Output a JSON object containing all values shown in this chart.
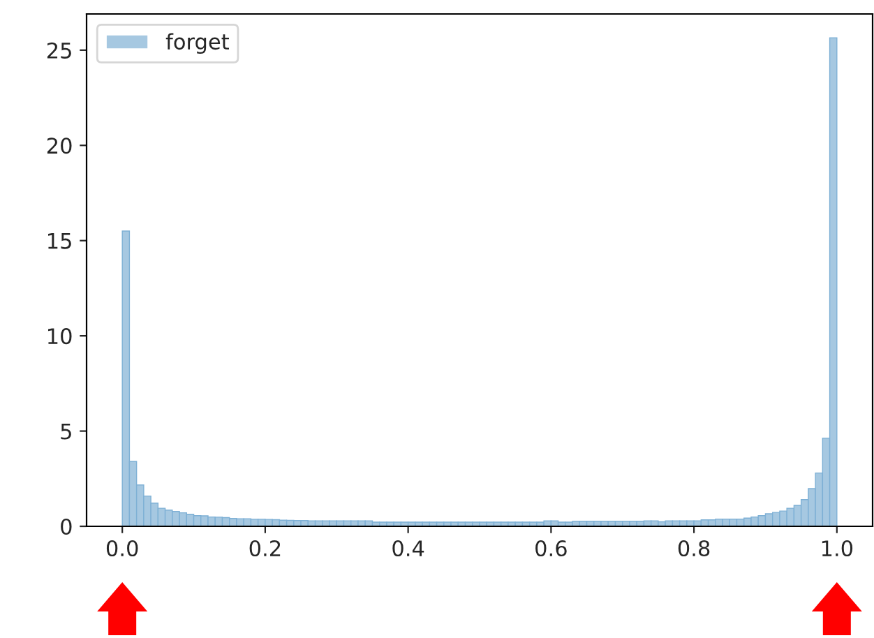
{
  "chart_data": {
    "type": "histogram",
    "bins": [
      0.0,
      0.01,
      0.02,
      0.03,
      0.04,
      0.05,
      0.06,
      0.07,
      0.08,
      0.09,
      0.1,
      0.11,
      0.12,
      0.13,
      0.14,
      0.15,
      0.16,
      0.17,
      0.18,
      0.19,
      0.2,
      0.21,
      0.22,
      0.23,
      0.24,
      0.25,
      0.26,
      0.27,
      0.28,
      0.29,
      0.3,
      0.31,
      0.32,
      0.33,
      0.34,
      0.35,
      0.36,
      0.37,
      0.38,
      0.39,
      0.4,
      0.41,
      0.42,
      0.43,
      0.44,
      0.45,
      0.46,
      0.47,
      0.48,
      0.49,
      0.5,
      0.51,
      0.52,
      0.53,
      0.54,
      0.55,
      0.56,
      0.57,
      0.58,
      0.59,
      0.6,
      0.61,
      0.62,
      0.63,
      0.64,
      0.65,
      0.66,
      0.67,
      0.68,
      0.69,
      0.7,
      0.71,
      0.72,
      0.73,
      0.74,
      0.75,
      0.76,
      0.77,
      0.78,
      0.79,
      0.8,
      0.81,
      0.82,
      0.83,
      0.84,
      0.85,
      0.86,
      0.87,
      0.88,
      0.89,
      0.9,
      0.91,
      0.92,
      0.93,
      0.94,
      0.95,
      0.96,
      0.97,
      0.98,
      0.99,
      1.0
    ],
    "series": [
      {
        "name": "forget",
        "color": "#a6c8e1",
        "values": [
          15.5,
          3.41,
          2.17,
          1.59,
          1.22,
          0.95,
          0.85,
          0.78,
          0.71,
          0.63,
          0.56,
          0.55,
          0.49,
          0.48,
          0.46,
          0.41,
          0.4,
          0.4,
          0.37,
          0.37,
          0.36,
          0.35,
          0.32,
          0.31,
          0.3,
          0.3,
          0.29,
          0.29,
          0.29,
          0.29,
          0.29,
          0.29,
          0.29,
          0.29,
          0.29,
          0.22,
          0.22,
          0.22,
          0.22,
          0.22,
          0.22,
          0.22,
          0.22,
          0.22,
          0.22,
          0.22,
          0.22,
          0.22,
          0.22,
          0.22,
          0.22,
          0.22,
          0.22,
          0.22,
          0.22,
          0.22,
          0.22,
          0.22,
          0.22,
          0.29,
          0.29,
          0.22,
          0.22,
          0.27,
          0.27,
          0.27,
          0.27,
          0.27,
          0.27,
          0.27,
          0.27,
          0.27,
          0.27,
          0.29,
          0.29,
          0.24,
          0.29,
          0.29,
          0.29,
          0.29,
          0.29,
          0.34,
          0.34,
          0.38,
          0.38,
          0.38,
          0.38,
          0.43,
          0.49,
          0.56,
          0.66,
          0.73,
          0.8,
          0.95,
          1.1,
          1.4,
          1.98,
          2.8,
          4.63,
          25.65
        ]
      }
    ],
    "xlim": [
      -0.05,
      1.05
    ],
    "ylim": [
      0,
      26.9
    ],
    "xticks": [
      {
        "value": 0.0,
        "label": "0.0"
      },
      {
        "value": 0.2,
        "label": "0.2"
      },
      {
        "value": 0.4,
        "label": "0.4"
      },
      {
        "value": 0.6,
        "label": "0.6"
      },
      {
        "value": 0.8,
        "label": "0.8"
      },
      {
        "value": 1.0,
        "label": "1.0"
      }
    ],
    "yticks": [
      0,
      5,
      10,
      15,
      20,
      25
    ],
    "grid": false,
    "legend": "top left"
  }
}
